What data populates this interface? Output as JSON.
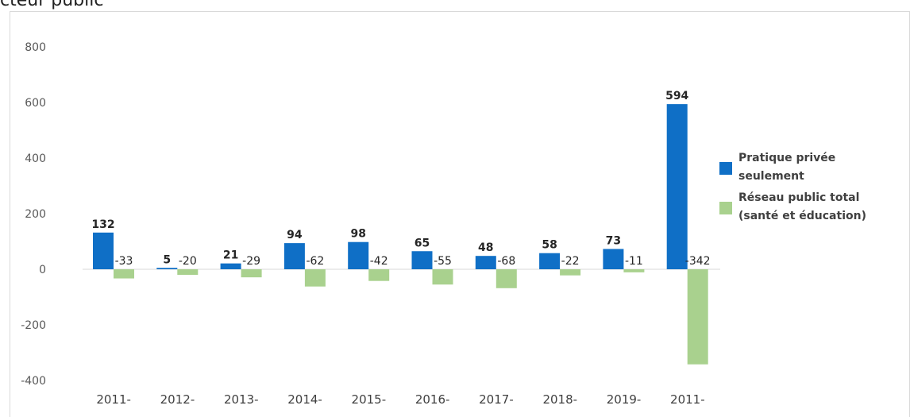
{
  "caption": "cteur public",
  "legend": {
    "items": [
      {
        "label": "Pratique privée seulement",
        "color": "#0f6fc6"
      },
      {
        "label": "Réseau public total (santé et éducation)",
        "color": "#a9d18e"
      }
    ]
  },
  "chart_data": {
    "type": "bar",
    "categories": [
      "2011-",
      "2012-",
      "2013-",
      "2014-",
      "2015-",
      "2016-",
      "2017-",
      "2018-",
      "2019-",
      "2011-"
    ],
    "series": [
      {
        "name": "Pratique privée seulement",
        "color": "#0f6fc6",
        "values": [
          132,
          5,
          21,
          94,
          98,
          65,
          48,
          58,
          73,
          594
        ]
      },
      {
        "name": "Réseau public total (santé et éducation)",
        "color": "#a9d18e",
        "values": [
          -33,
          -20,
          -29,
          -62,
          -42,
          -55,
          -68,
          -22,
          -11,
          -342
        ]
      }
    ],
    "ylim": [
      -400,
      800
    ],
    "yticks": [
      800,
      600,
      400,
      200,
      0,
      -200,
      -400
    ],
    "data_labels": {
      "series_0": [
        "132",
        "5",
        "21",
        "94",
        "98",
        "65",
        "48",
        "58",
        "73",
        "594"
      ],
      "series_1": [
        "-33",
        "-20",
        "-29",
        "-62",
        "-42",
        "-55",
        "-68",
        "-22",
        "-11",
        "-342"
      ]
    },
    "grid": false,
    "legend_position": "right",
    "title": "",
    "xlabel": "",
    "ylabel": ""
  }
}
